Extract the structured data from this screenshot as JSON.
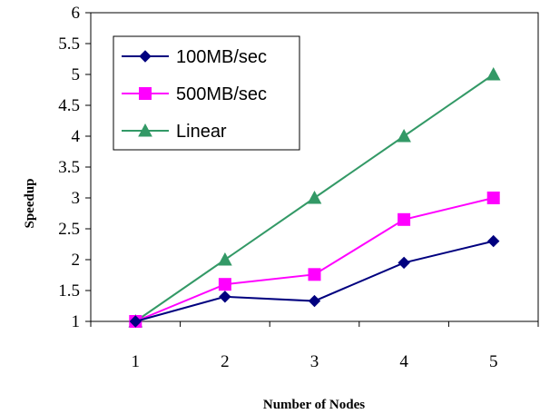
{
  "chart_data": {
    "type": "line",
    "title": "",
    "xlabel": "Number of Nodes",
    "ylabel": "Speedup",
    "x": [
      1,
      2,
      3,
      4,
      5
    ],
    "xlim": [
      0.5,
      5.5
    ],
    "ylim": [
      1,
      6
    ],
    "yticks": [
      "1",
      "1.5",
      "2",
      "2.5",
      "3",
      "3.5",
      "4",
      "4.5",
      "5",
      "5.5",
      "6"
    ],
    "xticks": [
      "1",
      "2",
      "3",
      "4",
      "5"
    ],
    "grid": false,
    "legend": "top-left",
    "series": [
      {
        "name": "100MB/sec",
        "values": [
          1,
          1.4,
          1.33,
          1.95,
          2.3
        ],
        "color": "#00007f",
        "marker": "diamond"
      },
      {
        "name": "500MB/sec",
        "values": [
          1,
          1.6,
          1.76,
          2.65,
          3.0
        ],
        "color": "#ff00ff",
        "marker": "square"
      },
      {
        "name": "Linear",
        "values": [
          1,
          2,
          3,
          4,
          5
        ],
        "color": "#339966",
        "marker": "triangle"
      }
    ]
  }
}
